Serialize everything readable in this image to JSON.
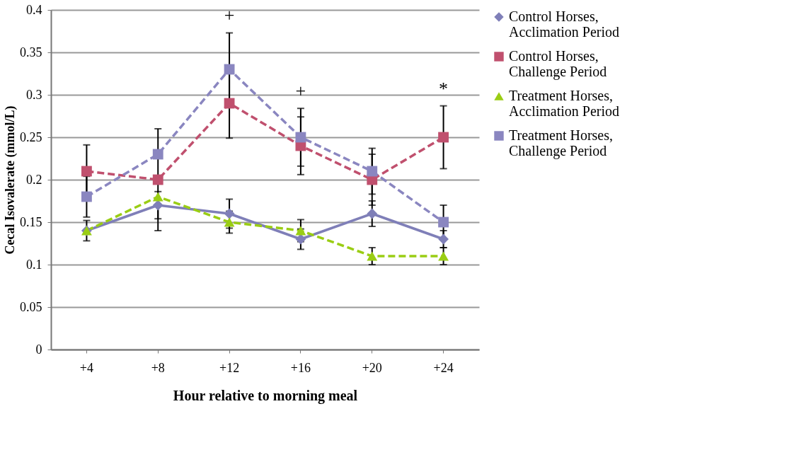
{
  "chart_data": {
    "type": "line",
    "xlabel": "Hour relative to morning meal",
    "ylabel": "Cecal Isovalerate (mmol/L)",
    "categories": [
      "+4",
      "+8",
      "+12",
      "+16",
      "+20",
      "+24"
    ],
    "ylim": [
      0,
      0.4
    ],
    "yticks": [
      0,
      0.05,
      0.1,
      0.15,
      0.2,
      0.25,
      0.3,
      0.35,
      0.4
    ],
    "grid": "y",
    "legend": "right",
    "series": [
      {
        "name": "Control Horses, Acclimation Period",
        "color": "#7f7fb8",
        "marker": "diamond",
        "line_style": "solid",
        "values": [
          0.14,
          0.17,
          0.16,
          0.13,
          0.16,
          0.13
        ],
        "errors": [
          null,
          0.016,
          0.017,
          0.012,
          0.015,
          0.01
        ]
      },
      {
        "name": "Control Horses, Challenge Period",
        "color": "#c0506e",
        "marker": "square",
        "line_style": "dashed",
        "values": [
          0.21,
          0.2,
          0.29,
          0.24,
          0.2,
          0.25
        ],
        "errors": [
          0.031,
          0.06,
          0.041,
          0.034,
          0.03,
          0.037
        ]
      },
      {
        "name": "Treatment Horses, Acclimation Period",
        "color": "#9acd14",
        "marker": "triangle",
        "line_style": "dashed",
        "values": [
          0.14,
          0.18,
          0.15,
          0.14,
          0.11,
          0.11
        ],
        "errors": [
          0.012,
          null,
          0.013,
          0.013,
          0.01,
          0.01
        ]
      },
      {
        "name": "Treatment Horses, Challenge Period",
        "color": "#8a86c0",
        "marker": "square",
        "line_style": "dashed",
        "values": [
          0.18,
          0.23,
          0.33,
          0.25,
          0.21,
          0.15
        ],
        "errors": [
          0.024,
          null,
          0.043,
          0.034,
          0.027,
          0.02
        ]
      }
    ],
    "annotations": [
      "+",
      "+",
      "*"
    ]
  }
}
